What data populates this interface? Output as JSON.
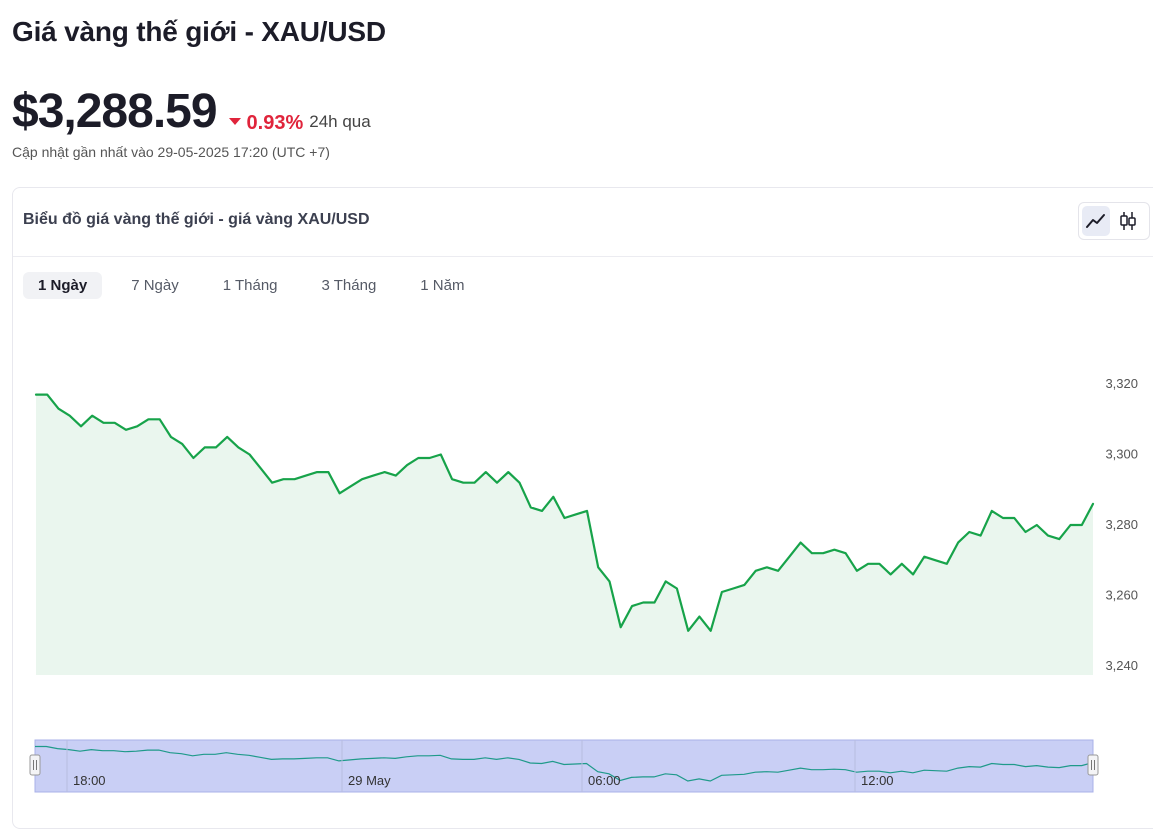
{
  "page": {
    "title": "Giá vàng thế giới - XAU/USD",
    "price": "$3,288.59",
    "change": "0.93%",
    "change_period": "24h qua",
    "updated": "Cập nhật gần nhất vào 29-05-2025 17:20 (UTC +7)"
  },
  "card": {
    "title": "Biểu đồ giá vàng thế giới - giá vàng XAU/USD",
    "chart_types": [
      {
        "icon": "line-chart-icon",
        "active": true
      },
      {
        "icon": "candlestick-icon",
        "active": false
      }
    ],
    "tabs": [
      {
        "label": "1 Ngày",
        "active": true
      },
      {
        "label": "7 Ngày",
        "active": false
      },
      {
        "label": "1 Tháng",
        "active": false
      },
      {
        "label": "3 Tháng",
        "active": false
      },
      {
        "label": "1 Năm",
        "active": false
      }
    ]
  },
  "colors": {
    "line": "#17a34a",
    "area": "#eaf6ee",
    "down": "#e0243b",
    "navigator_fill": "#c9cff5",
    "navigator_line": "#1f9a8a"
  },
  "chart_data": {
    "type": "area",
    "ylim": [
      3238,
      3328
    ],
    "yticks": [
      "3,320",
      "3,300",
      "3,280",
      "3,260",
      "3,240"
    ],
    "ytick_values": [
      3320,
      3300,
      3280,
      3260,
      3240
    ],
    "navigator_labels": [
      "18:00",
      "29 May",
      "06:00",
      "12:00"
    ],
    "series": [
      {
        "values": [
          3317,
          3317,
          3313,
          3311,
          3308,
          3311,
          3309,
          3309,
          3307,
          3308,
          3310,
          3310,
          3305,
          3303,
          3299,
          3302,
          3302,
          3305,
          3302,
          3300,
          3296,
          3292,
          3293,
          3293,
          3294,
          3295,
          3295,
          3289,
          3291,
          3293,
          3294,
          3295,
          3294,
          3297,
          3299,
          3299,
          3300,
          3293,
          3292,
          3292,
          3295,
          3292,
          3295,
          3292,
          3285,
          3284,
          3288,
          3282,
          3283,
          3284,
          3268,
          3264,
          3251,
          3257,
          3258,
          3258,
          3264,
          3262,
          3250,
          3254,
          3250,
          3261,
          3262,
          3263,
          3267,
          3268,
          3267,
          3271,
          3275,
          3272,
          3272,
          3273,
          3272,
          3267,
          3269,
          3269,
          3266,
          3269,
          3266,
          3271,
          3270,
          3269,
          3275,
          3278,
          3277,
          3284,
          3282,
          3282,
          3278,
          3280,
          3277,
          3276,
          3280,
          3280,
          3286
        ]
      }
    ]
  }
}
